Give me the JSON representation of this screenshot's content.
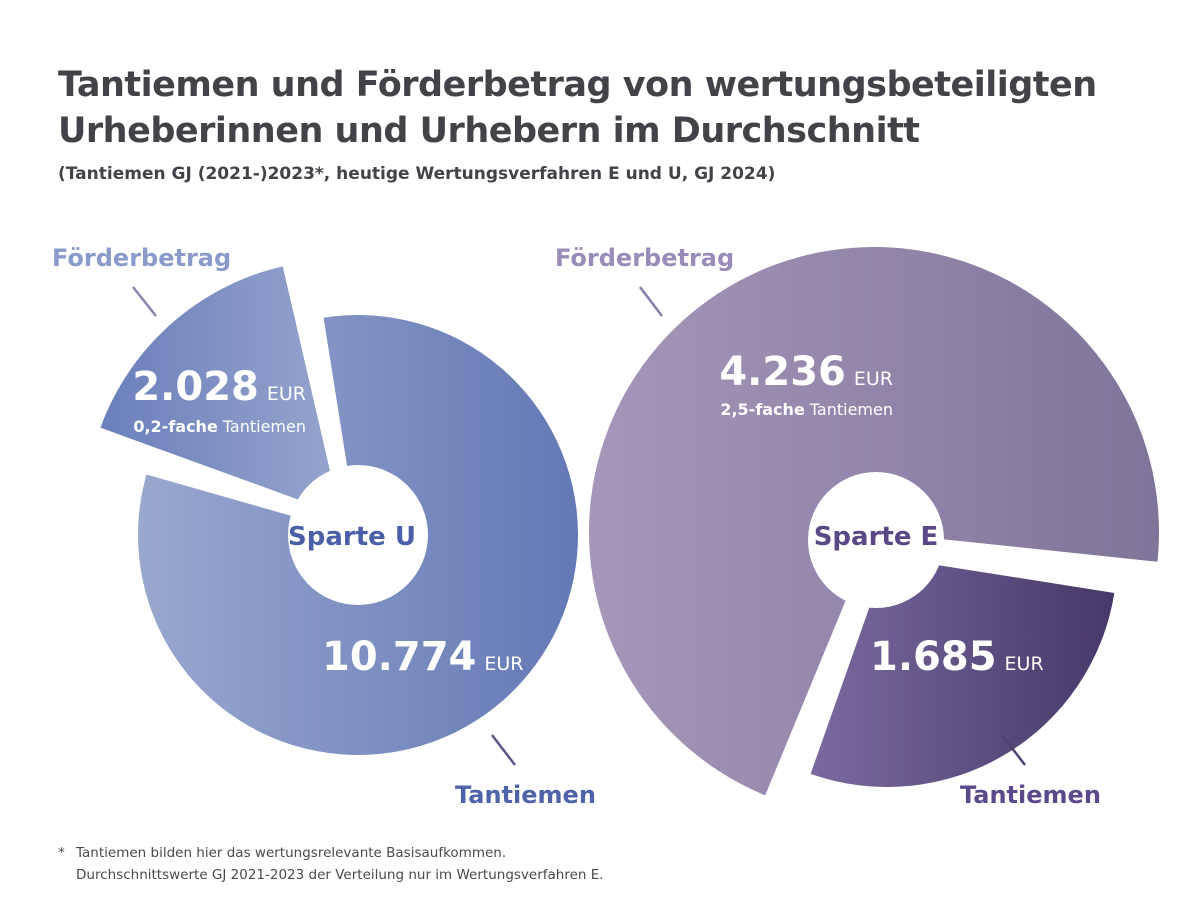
{
  "title_lines": [
    "Tantiemen und Förderbetrag von wertungsbeteiligten",
    "Urheberinnen und Urhebern im Durchschnitt"
  ],
  "subtitle": "(Tantiemen GJ (2021-)2023*, heutige Wertungsverfahren E und U, GJ 2024)",
  "footnote": {
    "marker": "*",
    "lines": [
      "Tantiemen bilden hier das wertungsrelevante Basisaufkommen.",
      "Durchschnittswerte GJ 2021-2023 der Verteilung nur im Wertungsverfahren E."
    ]
  },
  "chart_data": [
    {
      "type": "pie",
      "center_label": "Sparte U",
      "unit": "EUR",
      "slices": [
        {
          "name": "Förderbetrag",
          "value": 2028,
          "value_label": "2.028",
          "note_bold": "0,2-fache",
          "note_rest": "Tantiemen",
          "exploded": true,
          "colors": [
            "#6a7fbb",
            "#97a5cd"
          ],
          "label_color": "#8a9bcb"
        },
        {
          "name": "Tantiemen",
          "value": 10774,
          "value_label": "10.774",
          "exploded": false,
          "colors": [
            "#9aa8cf",
            "#6379b5"
          ],
          "label_color": "#4f63a9"
        }
      ],
      "center_color": "#4b5fa8"
    },
    {
      "type": "pie",
      "center_label": "Sparte E",
      "unit": "EUR",
      "slices": [
        {
          "name": "Förderbetrag",
          "value": 4236,
          "value_label": "4.236",
          "note_bold": "2,5-fache",
          "note_rest": "Tantiemen",
          "exploded": false,
          "colors": [
            "#a597ba",
            "#7f7499"
          ],
          "label_color": "#9a8cb8"
        },
        {
          "name": "Tantiemen",
          "value": 1685,
          "value_label": "1.685",
          "exploded": true,
          "colors": [
            "#7a6aa0",
            "#463868"
          ],
          "label_color": "#5b4a8a"
        }
      ],
      "center_color": "#5a4886"
    }
  ]
}
